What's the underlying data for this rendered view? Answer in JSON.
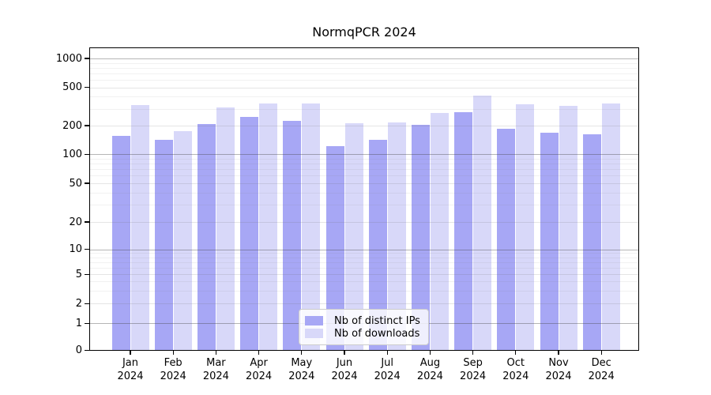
{
  "chart_data": {
    "type": "bar",
    "title": "NormqPCR 2024",
    "categories": [
      "Jan",
      "Feb",
      "Mar",
      "Apr",
      "May",
      "Jun",
      "Jul",
      "Aug",
      "Sep",
      "Oct",
      "Nov",
      "Dec"
    ],
    "category_year": "2024",
    "series": [
      {
        "name": "Nb of distinct IPs",
        "color": "#a7a7f5",
        "values": [
          155,
          143,
          207,
          245,
          226,
          122,
          141,
          203,
          275,
          184,
          167,
          163
        ]
      },
      {
        "name": "Nb of downloads",
        "color": "#d8d8f9",
        "values": [
          330,
          175,
          310,
          340,
          337,
          210,
          216,
          273,
          410,
          333,
          320,
          341
        ]
      }
    ],
    "xlabel": "",
    "ylabel": "",
    "yscale": "log-with-zero-baseline",
    "yticks": [
      0,
      1,
      2,
      5,
      10,
      20,
      50,
      100,
      200,
      500,
      1000
    ],
    "ytick_labels": [
      "0",
      "1",
      "2",
      "5",
      "10",
      "20",
      "50",
      "100",
      "200",
      "500",
      "1000"
    ],
    "ylim": [
      0,
      1300
    ],
    "grid": true,
    "legend_position": "lower center"
  }
}
